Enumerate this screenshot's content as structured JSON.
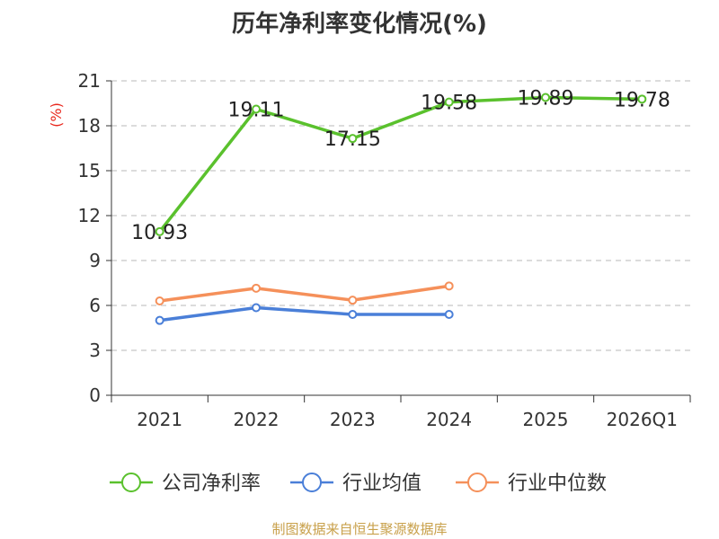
{
  "chart_data": {
    "type": "line",
    "title": "历年净利率变化情况(%)",
    "ylabel": "(%)",
    "xlabel": "",
    "categories": [
      "2021",
      "2022",
      "2023",
      "2024",
      "2025",
      "2026Q1"
    ],
    "ylim": [
      0,
      21
    ],
    "yticks": [
      0,
      3,
      6,
      9,
      12,
      15,
      18,
      21
    ],
    "grid": true,
    "legend_position": "bottom",
    "series": [
      {
        "name": "公司净利率",
        "color": "#5ac12d",
        "values": [
          10.93,
          19.11,
          17.15,
          19.58,
          19.89,
          19.78
        ],
        "labels": [
          "10.93",
          "19.11",
          "17.15",
          "19.58",
          "19.89",
          "19.78"
        ]
      },
      {
        "name": "行业均值",
        "color": "#4a7fd8",
        "values": [
          5.0,
          5.85,
          5.4,
          5.4,
          null,
          null
        ]
      },
      {
        "name": "行业中位数",
        "color": "#f5905a",
        "values": [
          6.3,
          7.15,
          6.35,
          7.3,
          null,
          null
        ]
      }
    ]
  },
  "footer": {
    "source": "制图数据来自恒生聚源数据库"
  }
}
